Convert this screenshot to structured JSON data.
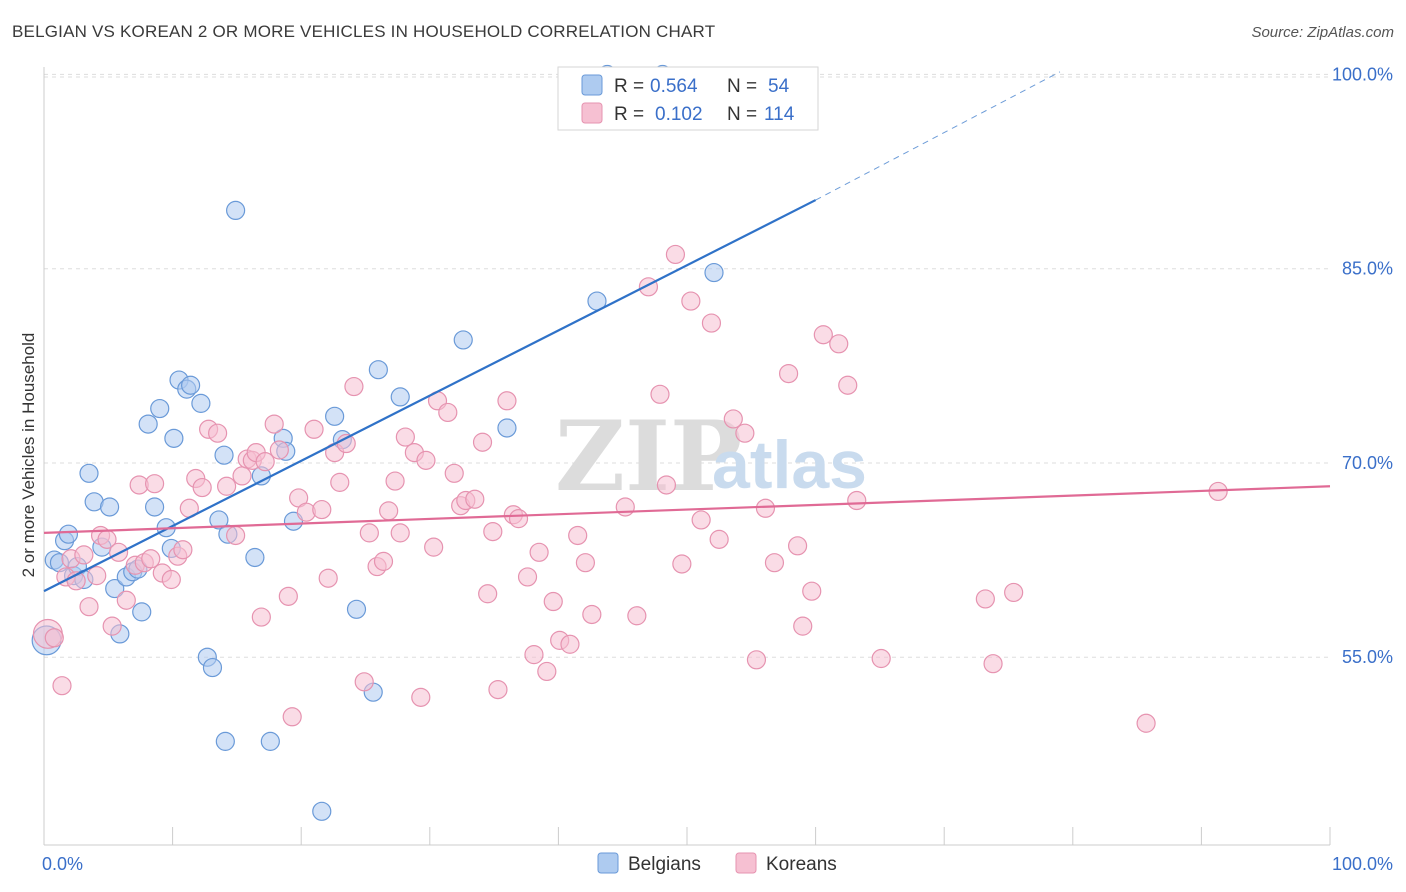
{
  "title": "BELGIAN VS KOREAN 2 OR MORE VEHICLES IN HOUSEHOLD CORRELATION CHART",
  "source": "Source: ZipAtlas.com",
  "watermark": {
    "zip": "ZIP",
    "atlas": "atlas"
  },
  "colors": {
    "belgian_fill": "#aecbf0",
    "belgian_stroke": "#6a9ad8",
    "belgian_line": "#2f72c8",
    "korean_fill": "#f6c0d2",
    "korean_stroke": "#e693b0",
    "korean_line": "#e06a95",
    "tick_label": "#3a6fc9",
    "grid": "#dddddd"
  },
  "legend": {
    "rows": [
      {
        "r_label": "R =",
        "r_value": "0.564",
        "n_label": "N =",
        "n_value": "54",
        "series": "belgians"
      },
      {
        "r_label": "R =",
        "r_value": "0.102",
        "n_label": "N =",
        "n_value": "114",
        "series": "koreans"
      }
    ]
  },
  "bottom_legend": [
    "Belgians",
    "Koreans"
  ],
  "chart_data": {
    "type": "scatter",
    "title": "BELGIAN VS KOREAN 2 OR MORE VEHICLES IN HOUSEHOLD CORRELATION CHART",
    "xlabel": "",
    "ylabel": "2 or more Vehicles in Household",
    "xlim": [
      0,
      100
    ],
    "ylim": [
      40.5,
      101.5
    ],
    "x_tick_labels": [
      "0.0%",
      "100.0%"
    ],
    "y_ticks": [
      55,
      70,
      85,
      100
    ],
    "y_tick_labels": [
      "55.0%",
      "70.0%",
      "85.0%",
      "100.0%"
    ],
    "grid": true,
    "legend_position": "top-center",
    "series": [
      {
        "name": "Belgians",
        "r": 0.564,
        "n": 54,
        "trend": {
          "x0": 0,
          "y0": 60.1,
          "x1": 60,
          "y1": 90.3,
          "dashed_to_x": 79,
          "dashed_to_y": 100.2
        },
        "points": [
          [
            0.2,
            56.3,
            1.6
          ],
          [
            0.8,
            62.5,
            1
          ],
          [
            1.2,
            62.3,
            1
          ],
          [
            1.6,
            64.0,
            1
          ],
          [
            1.9,
            64.5,
            1
          ],
          [
            2.3,
            61.3,
            1
          ],
          [
            2.6,
            62.0,
            1
          ],
          [
            3.1,
            61.0,
            1
          ],
          [
            3.5,
            69.2,
            1
          ],
          [
            3.9,
            67.0,
            1
          ],
          [
            4.5,
            63.5,
            1
          ],
          [
            5.1,
            66.6,
            1
          ],
          [
            5.5,
            60.3,
            1
          ],
          [
            5.9,
            56.8,
            1
          ],
          [
            6.4,
            61.2,
            1
          ],
          [
            6.9,
            61.6,
            1
          ],
          [
            7.3,
            61.8,
            1
          ],
          [
            7.6,
            58.5,
            1
          ],
          [
            8.1,
            73.0,
            1
          ],
          [
            8.6,
            66.6,
            1
          ],
          [
            9.0,
            74.2,
            1
          ],
          [
            9.5,
            65.0,
            1
          ],
          [
            9.9,
            63.4,
            1
          ],
          [
            10.1,
            71.9,
            1
          ],
          [
            10.5,
            76.4,
            1
          ],
          [
            11.1,
            75.7,
            1
          ],
          [
            11.4,
            76.0,
            1
          ],
          [
            12.2,
            74.6,
            1
          ],
          [
            12.7,
            55.0,
            1
          ],
          [
            13.1,
            54.2,
            1
          ],
          [
            13.6,
            65.6,
            1
          ],
          [
            14.0,
            70.6,
            1
          ],
          [
            14.1,
            48.5,
            1
          ],
          [
            14.3,
            64.5,
            1
          ],
          [
            14.9,
            89.5,
            1
          ],
          [
            16.4,
            62.7,
            1
          ],
          [
            16.9,
            69.0,
            1
          ],
          [
            17.6,
            48.5,
            1
          ],
          [
            18.6,
            71.9,
            1
          ],
          [
            18.8,
            70.9,
            1
          ],
          [
            19.4,
            65.5,
            1
          ],
          [
            21.6,
            43.1,
            1
          ],
          [
            22.6,
            73.6,
            1
          ],
          [
            23.2,
            71.8,
            1
          ],
          [
            24.3,
            58.7,
            1
          ],
          [
            25.6,
            52.3,
            1
          ],
          [
            26.0,
            77.2,
            1
          ],
          [
            27.7,
            75.1,
            1
          ],
          [
            32.6,
            79.5,
            1
          ],
          [
            36.0,
            72.7,
            1
          ],
          [
            43.0,
            82.5,
            1
          ],
          [
            43.8,
            100.0,
            1
          ],
          [
            48.1,
            100.0,
            1
          ],
          [
            52.1,
            84.7,
            1
          ]
        ]
      },
      {
        "name": "Koreans",
        "r": 0.102,
        "n": 114,
        "trend": {
          "x0": 0,
          "y0": 64.6,
          "x1": 100,
          "y1": 68.2
        },
        "points": [
          [
            0.3,
            56.8,
            1.6
          ],
          [
            0.8,
            56.5,
            1
          ],
          [
            1.4,
            52.8,
            1
          ],
          [
            1.7,
            61.2,
            1
          ],
          [
            2.1,
            62.6,
            1
          ],
          [
            2.5,
            60.9,
            1
          ],
          [
            3.1,
            62.9,
            1
          ],
          [
            3.5,
            58.9,
            1
          ],
          [
            4.1,
            61.3,
            1
          ],
          [
            4.4,
            64.4,
            1
          ],
          [
            4.9,
            64.1,
            1
          ],
          [
            5.3,
            57.4,
            1
          ],
          [
            5.8,
            63.1,
            1
          ],
          [
            6.4,
            59.4,
            1
          ],
          [
            7.1,
            62.1,
            1
          ],
          [
            7.4,
            68.3,
            1
          ],
          [
            7.8,
            62.3,
            1
          ],
          [
            8.3,
            62.6,
            1
          ],
          [
            8.6,
            68.4,
            1
          ],
          [
            9.2,
            61.5,
            1
          ],
          [
            9.9,
            61.0,
            1
          ],
          [
            10.4,
            62.8,
            1
          ],
          [
            10.8,
            63.3,
            1
          ],
          [
            11.3,
            66.5,
            1
          ],
          [
            11.8,
            68.8,
            1
          ],
          [
            12.3,
            68.1,
            1
          ],
          [
            12.8,
            72.6,
            1
          ],
          [
            13.5,
            72.3,
            1
          ],
          [
            14.2,
            68.2,
            1
          ],
          [
            14.9,
            64.4,
            1
          ],
          [
            15.4,
            69.0,
            1
          ],
          [
            15.8,
            70.3,
            1
          ],
          [
            16.2,
            70.2,
            1
          ],
          [
            16.5,
            70.8,
            1
          ],
          [
            16.9,
            58.1,
            1
          ],
          [
            17.2,
            70.1,
            1
          ],
          [
            17.9,
            73.0,
            1
          ],
          [
            18.3,
            71.0,
            1
          ],
          [
            19.0,
            59.7,
            1
          ],
          [
            19.3,
            50.4,
            1
          ],
          [
            19.8,
            67.3,
            1
          ],
          [
            20.4,
            66.2,
            1
          ],
          [
            21.0,
            72.6,
            1
          ],
          [
            21.6,
            66.4,
            1
          ],
          [
            22.1,
            61.1,
            1
          ],
          [
            22.6,
            70.8,
            1
          ],
          [
            23.0,
            68.5,
            1
          ],
          [
            23.5,
            71.5,
            1
          ],
          [
            24.1,
            75.9,
            1
          ],
          [
            24.9,
            53.1,
            1
          ],
          [
            25.3,
            64.6,
            1
          ],
          [
            25.9,
            62.0,
            1
          ],
          [
            26.4,
            62.4,
            1
          ],
          [
            26.8,
            66.3,
            1
          ],
          [
            27.3,
            68.6,
            1
          ],
          [
            27.7,
            64.6,
            1
          ],
          [
            28.1,
            72.0,
            1
          ],
          [
            28.8,
            70.8,
            1
          ],
          [
            29.3,
            51.9,
            1
          ],
          [
            29.7,
            70.2,
            1
          ],
          [
            30.3,
            63.5,
            1
          ],
          [
            30.6,
            74.8,
            1
          ],
          [
            31.4,
            73.9,
            1
          ],
          [
            31.9,
            69.2,
            1
          ],
          [
            32.4,
            66.7,
            1
          ],
          [
            32.8,
            67.1,
            1
          ],
          [
            33.5,
            67.2,
            1
          ],
          [
            34.1,
            71.6,
            1
          ],
          [
            34.5,
            59.9,
            1
          ],
          [
            34.9,
            64.7,
            1
          ],
          [
            35.3,
            52.5,
            1
          ],
          [
            36.0,
            74.8,
            1
          ],
          [
            36.5,
            66.0,
            1
          ],
          [
            36.9,
            65.7,
            1
          ],
          [
            37.6,
            61.2,
            1
          ],
          [
            38.1,
            55.2,
            1
          ],
          [
            38.5,
            63.1,
            1
          ],
          [
            39.1,
            53.9,
            1
          ],
          [
            39.6,
            59.3,
            1
          ],
          [
            40.1,
            56.3,
            1
          ],
          [
            40.9,
            56.0,
            1
          ],
          [
            41.5,
            64.4,
            1
          ],
          [
            42.1,
            62.3,
            1
          ],
          [
            42.6,
            58.3,
            1
          ],
          [
            45.2,
            66.6,
            1
          ],
          [
            46.1,
            58.2,
            1
          ],
          [
            47.0,
            83.6,
            1
          ],
          [
            47.9,
            75.3,
            1
          ],
          [
            48.4,
            68.3,
            1
          ],
          [
            49.1,
            86.1,
            1
          ],
          [
            49.6,
            62.2,
            1
          ],
          [
            50.3,
            82.5,
            1
          ],
          [
            51.1,
            65.6,
            1
          ],
          [
            51.9,
            80.8,
            1
          ],
          [
            52.5,
            64.1,
            1
          ],
          [
            53.6,
            73.4,
            1
          ],
          [
            54.5,
            72.3,
            1
          ],
          [
            55.4,
            54.8,
            1
          ],
          [
            56.1,
            66.5,
            1
          ],
          [
            56.8,
            62.3,
            1
          ],
          [
            57.9,
            76.9,
            1
          ],
          [
            58.6,
            63.6,
            1
          ],
          [
            59.0,
            57.4,
            1
          ],
          [
            59.7,
            60.1,
            1
          ],
          [
            60.6,
            79.9,
            1
          ],
          [
            61.8,
            79.2,
            1
          ],
          [
            62.5,
            76.0,
            1
          ],
          [
            63.2,
            67.1,
            1
          ],
          [
            65.1,
            54.9,
            1
          ],
          [
            73.2,
            59.5,
            1
          ],
          [
            73.8,
            54.5,
            1
          ],
          [
            75.4,
            60.0,
            1
          ],
          [
            85.7,
            49.9,
            1
          ],
          [
            91.3,
            67.8,
            1
          ]
        ]
      }
    ]
  }
}
